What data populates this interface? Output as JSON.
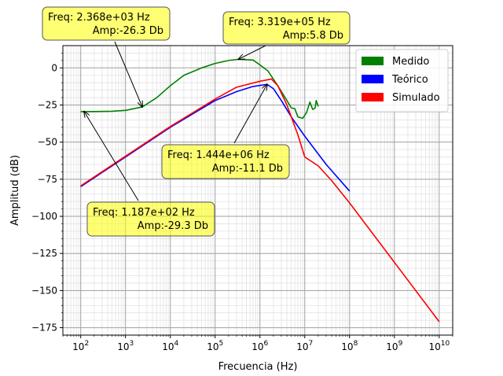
{
  "chart_data": {
    "type": "line",
    "title": "",
    "xlabel": "Frecuencia (Hz)",
    "ylabel": "Amplitud (dB)",
    "xscale": "log",
    "xlim": [
      40,
      20000000000
    ],
    "ylim": [
      -180,
      15
    ],
    "grid": true,
    "x_tick_labels": [
      {
        "exp": 2,
        "label": "10",
        "sup": "2"
      },
      {
        "exp": 3,
        "label": "10",
        "sup": "3"
      },
      {
        "exp": 4,
        "label": "10",
        "sup": "4"
      },
      {
        "exp": 5,
        "label": "10",
        "sup": "5"
      },
      {
        "exp": 6,
        "label": "10",
        "sup": "6"
      },
      {
        "exp": 7,
        "label": "10",
        "sup": "7"
      },
      {
        "exp": 8,
        "label": "10",
        "sup": "8"
      },
      {
        "exp": 9,
        "label": "10",
        "sup": "9"
      },
      {
        "exp": 10,
        "label": "10",
        "sup": "10"
      }
    ],
    "y_ticks": [
      0,
      -25,
      -50,
      -75,
      -100,
      -125,
      -150,
      -175
    ],
    "y_tick_labels": [
      "0",
      "−25",
      "−50",
      "−75",
      "−100",
      "−125",
      "−150",
      "−175"
    ],
    "legend": {
      "position": "top-right",
      "entries": [
        {
          "name": "Medido",
          "color": "#008000"
        },
        {
          "name": "Teórico",
          "color": "#0000ff"
        },
        {
          "name": "Simulado",
          "color": "#ff0000"
        }
      ]
    },
    "series": [
      {
        "name": "Medido",
        "color": "#008000",
        "points": [
          [
            100,
            -29.5
          ],
          [
            200,
            -29.4
          ],
          [
            500,
            -29.2
          ],
          [
            1000,
            -28.6
          ],
          [
            2368,
            -26.3
          ],
          [
            5000,
            -20
          ],
          [
            10000,
            -12
          ],
          [
            20000,
            -5
          ],
          [
            50000,
            0
          ],
          [
            100000,
            3
          ],
          [
            200000,
            5
          ],
          [
            331900,
            5.8
          ],
          [
            500000,
            5.5
          ],
          [
            700000,
            5.3
          ],
          [
            1000000,
            2
          ],
          [
            1500000,
            -2
          ],
          [
            2500000,
            -12
          ],
          [
            4000000,
            -22
          ],
          [
            5000000,
            -27
          ],
          [
            6000000,
            -27.5
          ],
          [
            7000000,
            -33
          ],
          [
            9000000,
            -34
          ],
          [
            11000000,
            -30
          ],
          [
            13000000,
            -23
          ],
          [
            15000000,
            -28
          ],
          [
            17000000,
            -27
          ],
          [
            18000000,
            -22
          ],
          [
            20000000,
            -26
          ]
        ]
      },
      {
        "name": "Teórico",
        "color": "#0000ff",
        "points": [
          [
            100,
            -80
          ],
          [
            1000,
            -60
          ],
          [
            10000,
            -40
          ],
          [
            100000,
            -22
          ],
          [
            300000,
            -16
          ],
          [
            700000,
            -12.5
          ],
          [
            1444000,
            -11.1
          ],
          [
            2000000,
            -14
          ],
          [
            3000000,
            -22
          ],
          [
            5000000,
            -33
          ],
          [
            10000000,
            -46
          ],
          [
            30000000,
            -65
          ],
          [
            100000000,
            -83
          ]
        ]
      },
      {
        "name": "Simulado",
        "color": "#ff0000",
        "points": [
          [
            100,
            -79.5
          ],
          [
            1000,
            -59.5
          ],
          [
            10000,
            -39.5
          ],
          [
            100000,
            -21
          ],
          [
            300000,
            -13
          ],
          [
            1000000,
            -9
          ],
          [
            1800000,
            -7.5
          ],
          [
            2500000,
            -12
          ],
          [
            4000000,
            -25
          ],
          [
            7000000,
            -45
          ],
          [
            10000000,
            -60
          ],
          [
            20000000,
            -66
          ],
          [
            40000000,
            -76
          ],
          [
            100000000,
            -91
          ],
          [
            1000000000,
            -131
          ],
          [
            10000000000,
            -171
          ]
        ]
      }
    ],
    "annotations": [
      {
        "lines": [
          "Freq: 2.368e+03  Hz",
          "Amp:-26.3 Db"
        ],
        "point": [
          2368,
          -26.3
        ]
      },
      {
        "lines": [
          "Freq: 3.319e+05  Hz",
          "Amp:5.8 Db"
        ],
        "point": [
          331900,
          5.8
        ]
      },
      {
        "lines": [
          "Freq: 1.444e+06  Hz",
          "Amp:-11.1 Db"
        ],
        "point": [
          1444000,
          -11.1
        ]
      },
      {
        "lines": [
          "Freq: 1.187e+02  Hz",
          "Amp:-29.3 Db"
        ],
        "point": [
          118.7,
          -29.3
        ]
      }
    ]
  }
}
